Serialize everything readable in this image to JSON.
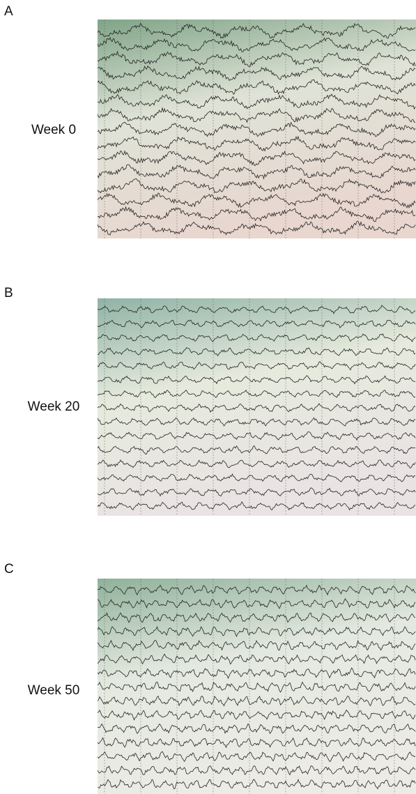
{
  "panels": [
    {
      "label": "A",
      "caption": "Week 0"
    },
    {
      "label": "B",
      "caption": "Week 20"
    },
    {
      "label": "C",
      "caption": "Week 50"
    }
  ]
}
